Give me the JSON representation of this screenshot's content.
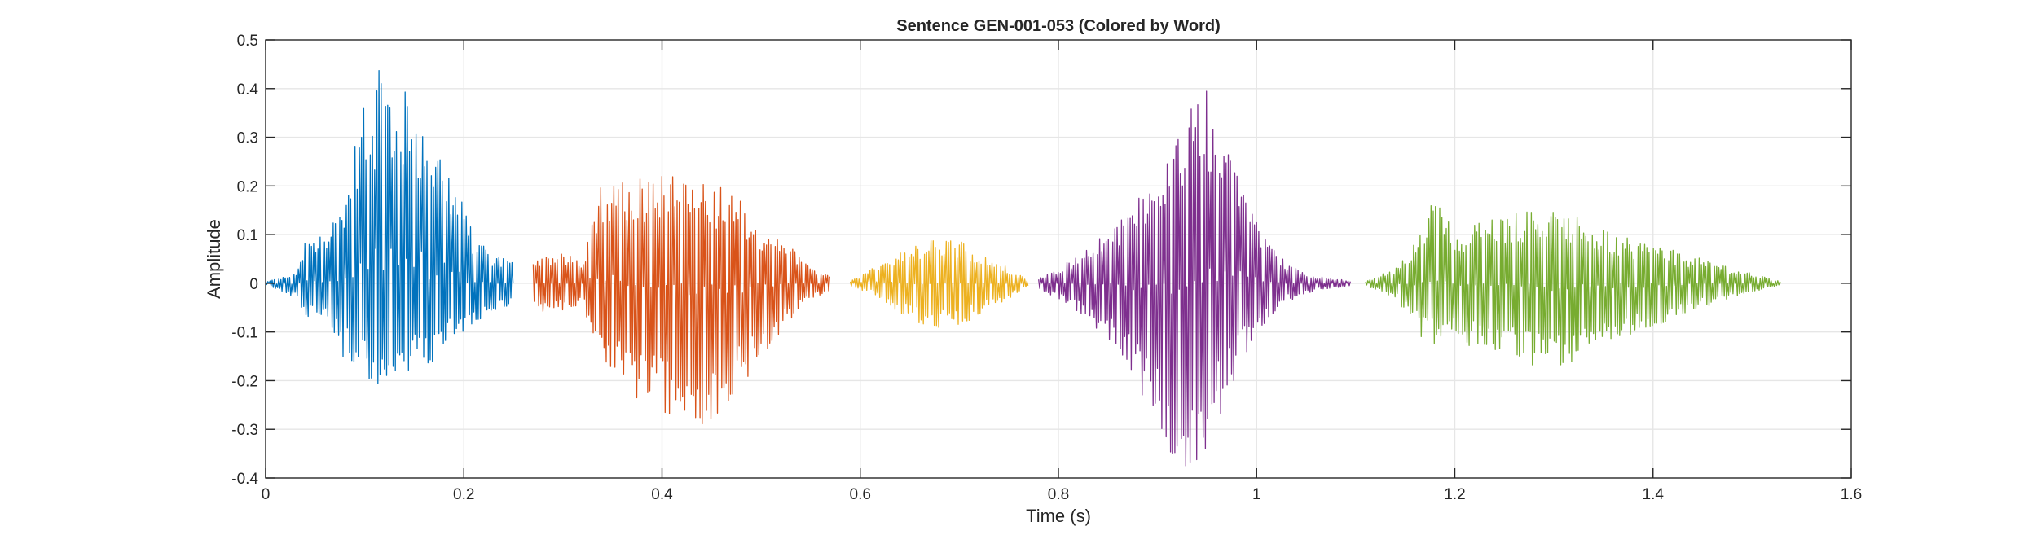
{
  "chart_data": {
    "type": "line",
    "title": "Sentence GEN-001-053 (Colored by Word)",
    "xlabel": "Time (s)",
    "ylabel": "Amplitude",
    "xlim": [
      0,
      1.6
    ],
    "ylim": [
      -0.4,
      0.5
    ],
    "xticks": [
      0,
      0.2,
      0.4,
      0.6,
      0.8,
      1,
      1.2,
      1.4,
      1.6
    ],
    "xtick_labels": [
      "0",
      "0.2",
      "0.4",
      "0.6",
      "0.8",
      "1",
      "1.2",
      "1.4",
      "1.6"
    ],
    "yticks": [
      -0.4,
      -0.3,
      -0.2,
      -0.1,
      0,
      0.1,
      0.2,
      0.3,
      0.4,
      0.5
    ],
    "ytick_labels": [
      "-0.4",
      "-0.3",
      "-0.2",
      "-0.1",
      "0",
      "0.1",
      "0.2",
      "0.3",
      "0.4",
      "0.5"
    ],
    "grid": true,
    "box": "closed",
    "series": [
      {
        "color": "#0072BD",
        "x_range": [
          0,
          0.25
        ],
        "envelope": [
          [
            0,
            0.003,
            -0.003
          ],
          [
            0.03,
            0.02,
            -0.03
          ],
          [
            0.04,
            0.09,
            -0.07
          ],
          [
            0.06,
            0.1,
            -0.09
          ],
          [
            0.08,
            0.18,
            -0.16
          ],
          [
            0.1,
            0.38,
            -0.2
          ],
          [
            0.115,
            0.44,
            -0.23
          ],
          [
            0.13,
            0.42,
            -0.21
          ],
          [
            0.15,
            0.38,
            -0.19
          ],
          [
            0.17,
            0.3,
            -0.16
          ],
          [
            0.19,
            0.22,
            -0.12
          ],
          [
            0.21,
            0.1,
            -0.08
          ],
          [
            0.23,
            0.06,
            -0.06
          ],
          [
            0.25,
            0.045,
            -0.045
          ]
        ]
      },
      {
        "color": "#D95319",
        "x_range": [
          0.27,
          0.57
        ],
        "envelope": [
          [
            0.27,
            0.06,
            -0.06
          ],
          [
            0.3,
            0.06,
            -0.06
          ],
          [
            0.32,
            0.05,
            -0.05
          ],
          [
            0.34,
            0.22,
            -0.15
          ],
          [
            0.37,
            0.22,
            -0.25
          ],
          [
            0.4,
            0.23,
            -0.27
          ],
          [
            0.43,
            0.21,
            -0.3
          ],
          [
            0.46,
            0.2,
            -0.3
          ],
          [
            0.48,
            0.17,
            -0.22
          ],
          [
            0.5,
            0.12,
            -0.15
          ],
          [
            0.53,
            0.08,
            -0.08
          ],
          [
            0.55,
            0.03,
            -0.03
          ],
          [
            0.57,
            0.02,
            -0.02
          ]
        ]
      },
      {
        "color": "#EDB120",
        "x_range": [
          0.59,
          0.77
        ],
        "envelope": [
          [
            0.59,
            0.005,
            -0.005
          ],
          [
            0.62,
            0.04,
            -0.03
          ],
          [
            0.645,
            0.07,
            -0.07
          ],
          [
            0.67,
            0.09,
            -0.1
          ],
          [
            0.69,
            0.1,
            -0.09
          ],
          [
            0.71,
            0.08,
            -0.08
          ],
          [
            0.735,
            0.05,
            -0.05
          ],
          [
            0.76,
            0.02,
            -0.02
          ],
          [
            0.77,
            0.005,
            -0.005
          ]
        ]
      },
      {
        "color": "#7E2F8E",
        "x_range": [
          0.78,
          1.095
        ],
        "envelope": [
          [
            0.78,
            0.01,
            -0.01
          ],
          [
            0.82,
            0.06,
            -0.06
          ],
          [
            0.86,
            0.12,
            -0.14
          ],
          [
            0.9,
            0.26,
            -0.3
          ],
          [
            0.925,
            0.34,
            -0.39
          ],
          [
            0.945,
            0.42,
            -0.36
          ],
          [
            0.97,
            0.32,
            -0.24
          ],
          [
            1.0,
            0.14,
            -0.1
          ],
          [
            1.03,
            0.04,
            -0.04
          ],
          [
            1.06,
            0.015,
            -0.015
          ],
          [
            1.095,
            0.005,
            -0.005
          ]
        ]
      },
      {
        "color": "#77AC30",
        "x_range": [
          1.11,
          1.53
        ],
        "envelope": [
          [
            1.11,
            0.005,
            -0.005
          ],
          [
            1.14,
            0.03,
            -0.03
          ],
          [
            1.165,
            0.1,
            -0.11
          ],
          [
            1.175,
            0.19,
            -0.13
          ],
          [
            1.2,
            0.11,
            -0.12
          ],
          [
            1.23,
            0.13,
            -0.14
          ],
          [
            1.26,
            0.15,
            -0.16
          ],
          [
            1.29,
            0.15,
            -0.19
          ],
          [
            1.32,
            0.14,
            -0.16
          ],
          [
            1.36,
            0.1,
            -0.12
          ],
          [
            1.4,
            0.08,
            -0.1
          ],
          [
            1.45,
            0.05,
            -0.05
          ],
          [
            1.5,
            0.02,
            -0.02
          ],
          [
            1.53,
            0.003,
            -0.003
          ]
        ]
      }
    ]
  }
}
